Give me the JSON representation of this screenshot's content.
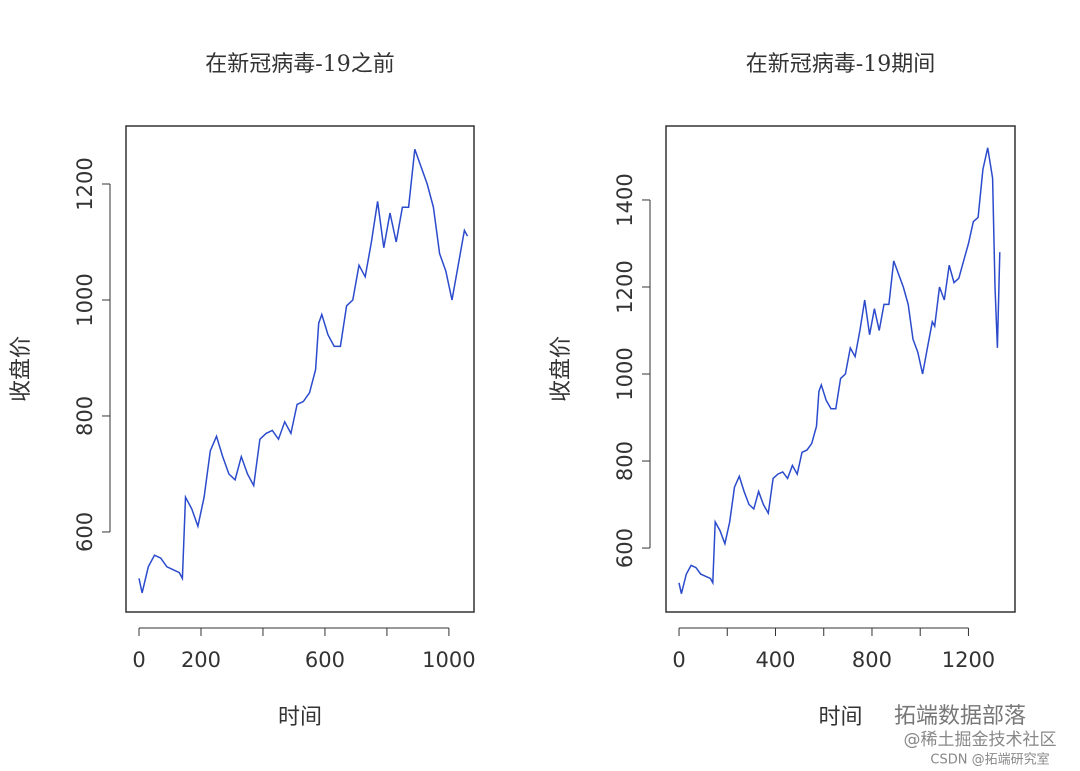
{
  "chart_data": [
    {
      "type": "line",
      "title": "在新冠病毒-19之前",
      "x_label": "时间",
      "y_label": "收盘价",
      "x": [
        0,
        10,
        30,
        50,
        70,
        90,
        110,
        130,
        140,
        150,
        170,
        190,
        210,
        230,
        250,
        270,
        290,
        310,
        330,
        350,
        370,
        390,
        410,
        430,
        450,
        470,
        490,
        510,
        530,
        550,
        570,
        580,
        590,
        610,
        630,
        650,
        670,
        690,
        710,
        730,
        750,
        770,
        790,
        810,
        830,
        850,
        870,
        890,
        910,
        930,
        950,
        970,
        990,
        1010,
        1030,
        1050,
        1060
      ],
      "series": [
        {
          "name": "收盘价",
          "color": "#2b4bcc",
          "values": [
            520,
            495,
            540,
            560,
            555,
            540,
            535,
            530,
            520,
            660,
            640,
            610,
            660,
            740,
            765,
            730,
            700,
            690,
            730,
            700,
            680,
            760,
            770,
            775,
            760,
            790,
            770,
            820,
            825,
            840,
            880,
            960,
            975,
            940,
            920,
            920,
            990,
            1000,
            1060,
            1040,
            1100,
            1170,
            1090,
            1150,
            1100,
            1160,
            1160,
            1260,
            1230,
            1200,
            1160,
            1080,
            1050,
            1000,
            1060,
            1120,
            1110
          ]
        }
      ],
      "xlim": [
        -42,
        1081
      ],
      "ylim": [
        462,
        1300
      ],
      "xticks": [
        0,
        200,
        {
          "value": 400,
          "label": null
        },
        600,
        {
          "value": 800,
          "label": null
        },
        1000
      ],
      "yticks": [
        600,
        800,
        1000,
        1200
      ]
    },
    {
      "type": "line",
      "title": "在新冠病毒-19期间",
      "x_label": "时间",
      "y_label": "收盘价",
      "x": [
        0,
        10,
        30,
        50,
        70,
        90,
        110,
        130,
        140,
        150,
        170,
        190,
        210,
        230,
        250,
        270,
        290,
        310,
        330,
        350,
        370,
        390,
        410,
        430,
        450,
        470,
        490,
        510,
        530,
        550,
        570,
        580,
        590,
        610,
        630,
        650,
        670,
        690,
        710,
        730,
        750,
        770,
        790,
        810,
        830,
        850,
        870,
        890,
        910,
        930,
        950,
        970,
        990,
        1010,
        1030,
        1050,
        1060,
        1080,
        1100,
        1120,
        1140,
        1160,
        1180,
        1200,
        1220,
        1240,
        1260,
        1280,
        1300,
        1310,
        1320,
        1330
      ],
      "series": [
        {
          "name": "收盘价",
          "color": "#2b4bcc",
          "values": [
            520,
            495,
            540,
            560,
            555,
            540,
            535,
            530,
            520,
            660,
            640,
            610,
            660,
            740,
            765,
            730,
            700,
            690,
            730,
            700,
            680,
            760,
            770,
            775,
            760,
            790,
            770,
            820,
            825,
            840,
            880,
            960,
            975,
            940,
            920,
            920,
            990,
            1000,
            1060,
            1040,
            1100,
            1170,
            1090,
            1150,
            1100,
            1160,
            1160,
            1260,
            1230,
            1200,
            1160,
            1080,
            1050,
            1000,
            1060,
            1120,
            1110,
            1200,
            1170,
            1250,
            1210,
            1220,
            1260,
            1300,
            1350,
            1360,
            1470,
            1520,
            1450,
            1200,
            1060,
            1280
          ]
        }
      ],
      "xlim": [
        -54,
        1393
      ],
      "ylim": [
        453,
        1570
      ],
      "xticks": [
        0,
        {
          "value": 200,
          "label": null
        },
        400,
        {
          "value": 600,
          "label": null
        },
        800,
        {
          "value": 1000,
          "label": null
        },
        1200
      ],
      "yticks": [
        600,
        800,
        1000,
        1200,
        1400
      ]
    }
  ],
  "watermark": [
    "拓端数据部落",
    "@稀土掘金技术社区",
    "CSDN @拓端研究室"
  ]
}
